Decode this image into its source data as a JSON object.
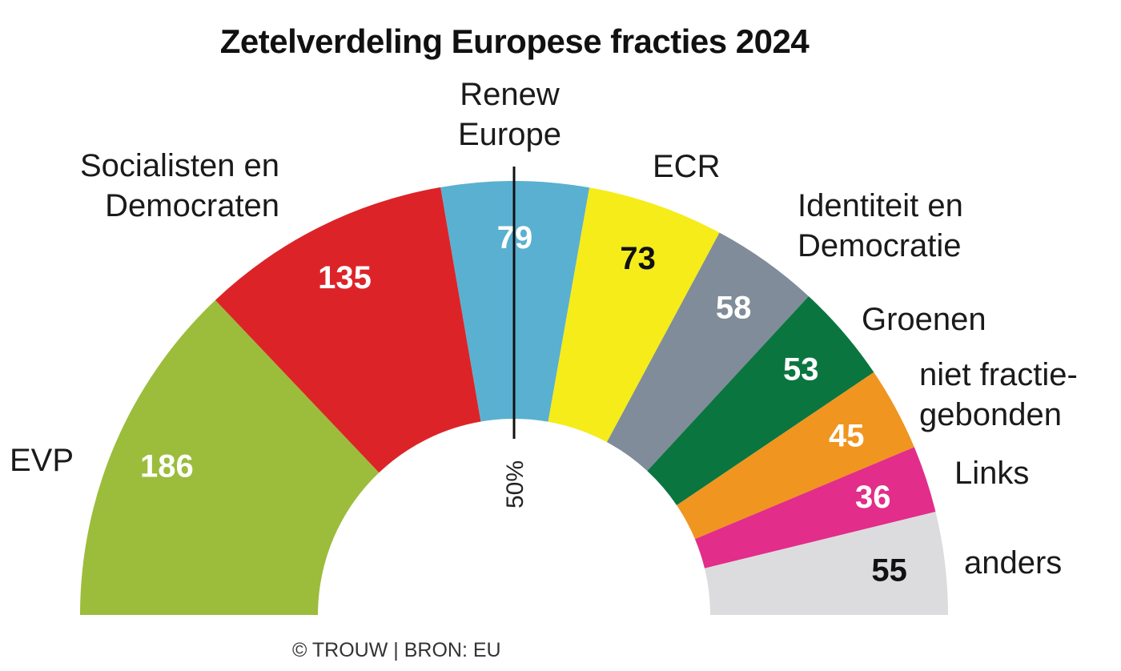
{
  "chart_data": {
    "type": "pie",
    "subtype": "half-donut (parliament seat distribution)",
    "title": "Zetelverdeling Europese fracties 2024",
    "total": 720,
    "majority_marker": "50%",
    "series": [
      {
        "name": "EVP",
        "label_lines": [
          "EVP"
        ],
        "value": 186,
        "color": "#9bbd3b",
        "text_color": "#ffffff"
      },
      {
        "name": "Socialisten en Democraten",
        "label_lines": [
          "Socialisten en",
          "Democraten"
        ],
        "value": 135,
        "color": "#dc2428",
        "text_color": "#ffffff"
      },
      {
        "name": "Renew Europe",
        "label_lines": [
          "Renew",
          "Europe"
        ],
        "value": 79,
        "color": "#5ab0d0",
        "text_color": "#ffffff"
      },
      {
        "name": "ECR",
        "label_lines": [
          "ECR"
        ],
        "value": 73,
        "color": "#f5ec1a",
        "text_color": "#111111"
      },
      {
        "name": "Identiteit en Democratie",
        "label_lines": [
          "Identiteit en",
          "Democratie"
        ],
        "value": 58,
        "color": "#808c99",
        "text_color": "#ffffff"
      },
      {
        "name": "Groenen",
        "label_lines": [
          "Groenen"
        ],
        "value": 53,
        "color": "#0b7540",
        "text_color": "#ffffff"
      },
      {
        "name": "niet fractiegebonden",
        "label_lines": [
          "niet fractie-",
          "gebonden"
        ],
        "value": 45,
        "color": "#f0951f",
        "text_color": "#ffffff"
      },
      {
        "name": "Links",
        "label_lines": [
          "Links"
        ],
        "value": 36,
        "color": "#e22d8a",
        "text_color": "#ffffff"
      },
      {
        "name": "anders",
        "label_lines": [
          "anders"
        ],
        "value": 55,
        "color": "#dcdcde",
        "text_color": "#111111"
      }
    ]
  },
  "source": "© TROUW | BRON: EU"
}
